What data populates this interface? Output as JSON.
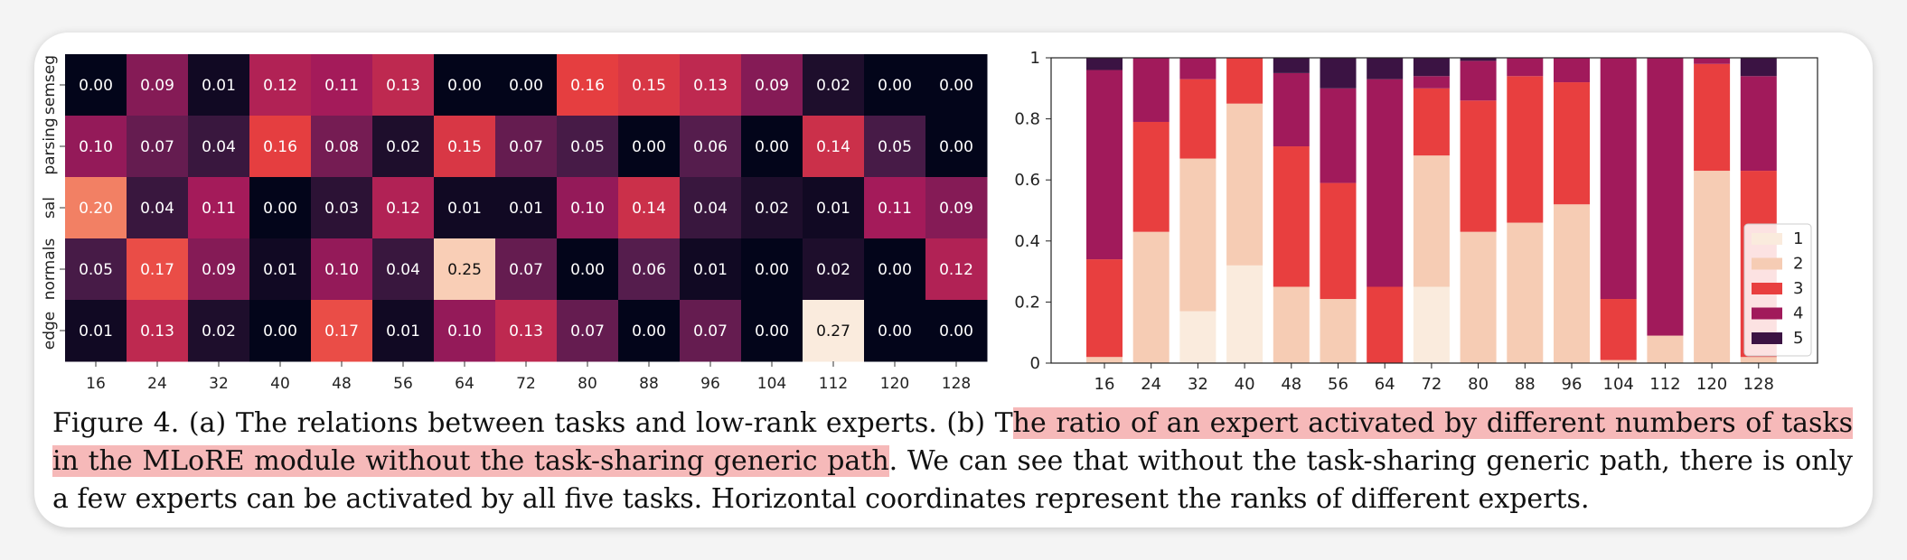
{
  "chart_data": [
    {
      "type": "heatmap",
      "rows": [
        "semseg",
        "parsing",
        "sal",
        "normals",
        "edge"
      ],
      "columns": [
        "16",
        "24",
        "32",
        "40",
        "48",
        "56",
        "64",
        "72",
        "80",
        "88",
        "96",
        "104",
        "112",
        "120",
        "128"
      ],
      "values": [
        [
          0.0,
          0.09,
          0.01,
          0.12,
          0.11,
          0.13,
          0.0,
          0.0,
          0.16,
          0.15,
          0.13,
          0.09,
          0.02,
          0.0,
          0.0
        ],
        [
          0.1,
          0.07,
          0.04,
          0.16,
          0.08,
          0.02,
          0.15,
          0.07,
          0.05,
          0.0,
          0.06,
          0.0,
          0.14,
          0.05,
          0.0
        ],
        [
          0.2,
          0.04,
          0.11,
          0.0,
          0.03,
          0.12,
          0.01,
          0.01,
          0.1,
          0.14,
          0.04,
          0.02,
          0.01,
          0.11,
          0.09
        ],
        [
          0.05,
          0.17,
          0.09,
          0.01,
          0.1,
          0.04,
          0.25,
          0.07,
          0.0,
          0.06,
          0.01,
          0.0,
          0.02,
          0.0,
          0.12
        ],
        [
          0.01,
          0.13,
          0.02,
          0.0,
          0.17,
          0.01,
          0.1,
          0.13,
          0.07,
          0.0,
          0.07,
          0.0,
          0.27,
          0.0,
          0.0
        ]
      ],
      "colors": [
        "#03051a",
        "#4c1d4b",
        "#a11a5b",
        "#e83f3f",
        "#f69c73",
        "#faebdd"
      ]
    },
    {
      "type": "bar",
      "stacked": true,
      "categories": [
        "16",
        "24",
        "32",
        "40",
        "48",
        "56",
        "64",
        "72",
        "80",
        "88",
        "96",
        "104",
        "112",
        "120",
        "128"
      ],
      "ylim": [
        0,
        1
      ],
      "yticks": [
        "0",
        "0.2",
        "0.4",
        "0.6",
        "0.8",
        "1"
      ],
      "legend_position": "lower-right",
      "series": [
        {
          "name": "1",
          "color": "#faebdd",
          "values": [
            0.0,
            0.0,
            0.17,
            0.32,
            0.0,
            0.0,
            0.0,
            0.25,
            0.0,
            0.0,
            0.0,
            0.0,
            0.0,
            0.0,
            0.0
          ]
        },
        {
          "name": "2",
          "color": "#f6ccb4",
          "values": [
            0.02,
            0.43,
            0.5,
            0.53,
            0.25,
            0.21,
            0.0,
            0.43,
            0.43,
            0.46,
            0.52,
            0.01,
            0.09,
            0.63,
            0.02
          ]
        },
        {
          "name": "3",
          "color": "#e83f3f",
          "values": [
            0.32,
            0.36,
            0.26,
            0.15,
            0.46,
            0.38,
            0.25,
            0.22,
            0.43,
            0.48,
            0.4,
            0.2,
            0.0,
            0.35,
            0.61
          ]
        },
        {
          "name": "4",
          "color": "#a11a5b",
          "values": [
            0.62,
            0.21,
            0.07,
            0.0,
            0.24,
            0.31,
            0.68,
            0.04,
            0.13,
            0.06,
            0.08,
            0.79,
            0.91,
            0.02,
            0.31
          ]
        },
        {
          "name": "5",
          "color": "#3b1343",
          "values": [
            0.04,
            0.0,
            0.0,
            0.0,
            0.05,
            0.1,
            0.07,
            0.06,
            0.01,
            0.0,
            0.0,
            0.0,
            0.0,
            0.0,
            0.06
          ]
        }
      ]
    }
  ],
  "caption": {
    "before": "Figure 4.  (a) The relations between tasks and low-rank experts.  (b) T",
    "highlight": "he ratio of an expert activated by different numbers of tasks in the MLoRE module without the task-sharing generic path",
    "after": ". We can see that without the task-sharing generic path, there is only a few experts can be activated by all five tasks. Horizontal coordinates represent the ranks of different experts."
  }
}
